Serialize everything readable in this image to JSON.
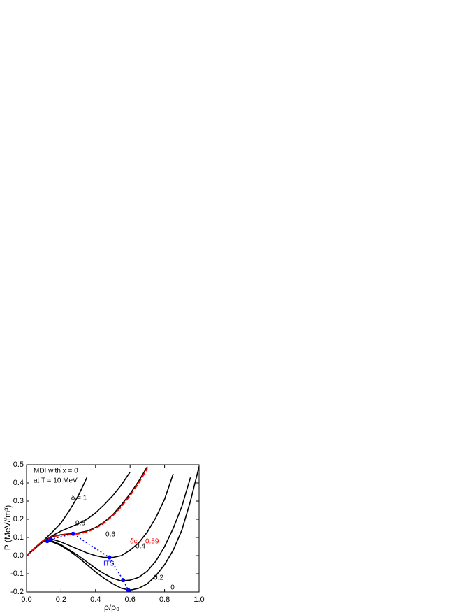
{
  "chart_data": {
    "type": "line",
    "annotations": [
      "MDI with x = 0",
      "at T = 10 MeV"
    ],
    "xlabel": "ρ/ρ₀",
    "ylabel": "P (MeV/fm³)",
    "xlim": [
      0,
      1
    ],
    "ylim": [
      -0.2,
      0.5
    ],
    "xticks": [
      {
        "value": 0,
        "label": "0.0"
      },
      0.2,
      0.4,
      0.6,
      0.8,
      {
        "value": 1,
        "label": "1.0"
      }
    ],
    "yticks": [
      -0.2,
      -0.1,
      {
        "value": 0,
        "label": "0.0"
      },
      0.1,
      0.2,
      0.3,
      0.4,
      0.5
    ],
    "x": [
      0,
      0.05,
      0.1,
      0.15,
      0.2,
      0.25,
      0.3,
      0.35,
      0.4,
      0.45,
      0.5,
      0.55,
      0.6,
      0.65,
      0.7,
      0.75,
      0.8,
      0.85,
      0.9,
      0.95,
      1.0
    ],
    "series": [
      {
        "name": "δ = 1",
        "color": "#000000",
        "dash": "solid",
        "values": [
          0,
          0.04,
          0.085,
          0.13,
          0.18,
          0.25,
          0.33,
          0.43,
          null,
          null,
          null,
          null,
          null,
          null,
          null,
          null,
          null,
          null,
          null,
          null,
          null
        ]
      },
      {
        "name": "0.8",
        "color": "#000000",
        "dash": "solid",
        "values": [
          0,
          0.04,
          0.08,
          0.11,
          0.135,
          0.155,
          0.175,
          0.2,
          0.235,
          0.28,
          0.33,
          0.39,
          0.46,
          null,
          null,
          null,
          null,
          null,
          null,
          null,
          null
        ]
      },
      {
        "name": "0.6",
        "color": "#000000",
        "dash": "solid",
        "values": [
          0,
          0.045,
          0.085,
          0.105,
          0.115,
          0.12,
          0.125,
          0.135,
          0.155,
          0.185,
          0.225,
          0.28,
          0.34,
          0.41,
          0.49,
          null,
          null,
          null,
          null,
          null,
          null
        ]
      },
      {
        "name": "0.4",
        "color": "#000000",
        "dash": "solid",
        "values": [
          0,
          0.045,
          0.085,
          0.09,
          0.075,
          0.055,
          0.035,
          0.015,
          0.0,
          -0.01,
          -0.01,
          0.0,
          0.03,
          0.07,
          0.13,
          0.21,
          0.31,
          0.45,
          null,
          null,
          null
        ]
      },
      {
        "name": "0.2",
        "color": "#000000",
        "dash": "solid",
        "values": [
          0,
          0.045,
          0.085,
          0.08,
          0.06,
          0.03,
          0.0,
          -0.035,
          -0.07,
          -0.1,
          -0.125,
          -0.14,
          -0.135,
          -0.12,
          -0.085,
          -0.03,
          0.05,
          0.15,
          0.27,
          0.43,
          null
        ]
      },
      {
        "name": "0",
        "color": "#000000",
        "dash": "solid",
        "values": [
          0,
          0.045,
          0.08,
          0.075,
          0.055,
          0.025,
          -0.01,
          -0.05,
          -0.09,
          -0.125,
          -0.155,
          -0.18,
          -0.19,
          -0.18,
          -0.155,
          -0.11,
          -0.05,
          0.03,
          0.14,
          0.3,
          0.49
        ]
      },
      {
        "name": "δc = 0.59",
        "color": "#ff0000",
        "dash": "dashed",
        "values": [
          0,
          0.045,
          0.085,
          0.105,
          0.113,
          0.117,
          0.12,
          0.13,
          0.15,
          0.18,
          0.22,
          0.27,
          0.33,
          0.4,
          0.48,
          null,
          null,
          null,
          null,
          null,
          null
        ]
      }
    ],
    "its": {
      "name": "ITS",
      "color": "#0000ff",
      "x": [
        0.12,
        0.14,
        0.27,
        0.48,
        0.56,
        0.59
      ],
      "values": [
        0.08,
        0.09,
        0.12,
        -0.01,
        -0.135,
        -0.19
      ]
    }
  }
}
